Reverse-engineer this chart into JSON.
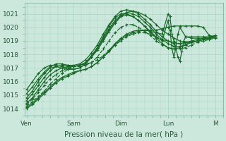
{
  "bg_color": "#cce8dd",
  "grid_color": "#aad4c4",
  "line_color": "#1a6b2a",
  "marker": "P",
  "markersize": 2.0,
  "linewidth": 0.9,
  "xlabel": "Pression niveau de la mer( hPa )",
  "xlabel_fontsize": 7.5,
  "yticks": [
    1014,
    1015,
    1016,
    1017,
    1018,
    1019,
    1020,
    1021
  ],
  "ylim": [
    1013.5,
    1021.8
  ],
  "xtick_labels": [
    "Ven",
    "Sam",
    "Dim",
    "Lun",
    "M"
  ],
  "xtick_positions": [
    0,
    24,
    48,
    72,
    96
  ],
  "xlim": [
    -1,
    100
  ],
  "series": [
    {
      "x": [
        0,
        3,
        6,
        9,
        12,
        15,
        18,
        21,
        24,
        27,
        30,
        33,
        36,
        39,
        42,
        45,
        48,
        51,
        54,
        57,
        60,
        63,
        66,
        69,
        72,
        75,
        78,
        81,
        84,
        87,
        90,
        93,
        96
      ],
      "y": [
        1014.2,
        1014.5,
        1014.9,
        1015.3,
        1015.8,
        1016.2,
        1016.6,
        1016.9,
        1017.1,
        1017.2,
        1017.3,
        1017.4,
        1017.6,
        1017.9,
        1018.3,
        1018.7,
        1019.0,
        1019.3,
        1019.5,
        1019.6,
        1019.6,
        1019.5,
        1019.3,
        1019.1,
        1019.0,
        1018.9,
        1018.8,
        1018.8,
        1018.9,
        1019.0,
        1019.1,
        1019.2,
        1019.3
      ],
      "dashed": true
    },
    {
      "x": [
        0,
        3,
        6,
        9,
        12,
        15,
        18,
        21,
        24,
        27,
        30,
        33,
        36,
        39,
        42,
        45,
        48,
        51,
        54,
        57,
        60,
        63,
        66,
        69,
        72,
        75,
        78,
        81,
        84,
        87,
        90,
        93,
        96
      ],
      "y": [
        1014.4,
        1014.8,
        1015.4,
        1016.0,
        1016.5,
        1016.8,
        1017.0,
        1017.1,
        1017.1,
        1017.2,
        1017.4,
        1017.8,
        1018.3,
        1019.0,
        1019.7,
        1020.3,
        1020.8,
        1021.1,
        1021.2,
        1021.1,
        1020.9,
        1020.6,
        1020.2,
        1019.8,
        1019.5,
        1019.2,
        1019.0,
        1018.9,
        1018.9,
        1019.0,
        1019.1,
        1019.2,
        1019.3
      ],
      "dashed": false
    },
    {
      "x": [
        0,
        3,
        6,
        9,
        12,
        15,
        18,
        21,
        24,
        27,
        30,
        33,
        36,
        39,
        42,
        45,
        48,
        51,
        54,
        57,
        60,
        63,
        66,
        69,
        72,
        75,
        78,
        81,
        84,
        87,
        90,
        93,
        96
      ],
      "y": [
        1014.6,
        1015.1,
        1015.7,
        1016.3,
        1016.8,
        1017.1,
        1017.2,
        1017.2,
        1017.2,
        1017.3,
        1017.6,
        1018.1,
        1018.7,
        1019.5,
        1020.2,
        1020.8,
        1021.2,
        1021.3,
        1021.2,
        1021.0,
        1020.6,
        1020.2,
        1019.7,
        1019.3,
        1019.0,
        1018.8,
        1018.8,
        1018.9,
        1019.0,
        1019.1,
        1019.2,
        1019.3,
        1019.4
      ],
      "dashed": false
    },
    {
      "x": [
        0,
        3,
        6,
        9,
        12,
        15,
        18,
        21,
        24,
        27,
        30,
        33,
        36,
        39,
        42,
        45,
        48,
        51,
        54,
        57,
        60,
        63,
        66,
        69,
        72,
        75,
        78,
        81,
        84,
        87,
        90,
        93,
        96
      ],
      "y": [
        1015.1,
        1015.6,
        1016.2,
        1016.7,
        1017.1,
        1017.3,
        1017.3,
        1017.2,
        1017.1,
        1017.2,
        1017.4,
        1017.9,
        1018.5,
        1019.2,
        1019.9,
        1020.5,
        1020.9,
        1021.1,
        1021.0,
        1020.8,
        1020.4,
        1020.0,
        1019.5,
        1019.1,
        1018.8,
        1018.6,
        1018.6,
        1018.7,
        1018.9,
        1019.0,
        1019.1,
        1019.2,
        1019.3
      ],
      "dashed": false
    },
    {
      "x": [
        0,
        3,
        6,
        9,
        12,
        15,
        18,
        21,
        24,
        27,
        30,
        33,
        36,
        39,
        42,
        45,
        48,
        51,
        54,
        57,
        60,
        63,
        66,
        69,
        72,
        75,
        78,
        81,
        84,
        87,
        90,
        93,
        96
      ],
      "y": [
        1015.4,
        1016.0,
        1016.6,
        1017.0,
        1017.2,
        1017.2,
        1017.1,
        1017.0,
        1016.9,
        1017.0,
        1017.3,
        1017.8,
        1018.4,
        1019.1,
        1019.8,
        1020.4,
        1020.8,
        1020.9,
        1020.8,
        1020.5,
        1020.1,
        1019.6,
        1019.2,
        1018.8,
        1018.5,
        1018.4,
        1018.5,
        1018.7,
        1018.9,
        1019.0,
        1019.1,
        1019.2,
        1019.3
      ],
      "dashed": false
    },
    {
      "x": [
        0,
        3,
        6,
        9,
        12,
        15,
        18,
        21,
        24,
        27,
        30,
        33,
        36,
        39,
        42,
        45,
        48,
        51,
        54,
        57,
        60,
        63,
        66,
        69,
        72,
        75,
        78,
        81,
        84,
        87,
        90,
        93,
        96
      ],
      "y": [
        1014.3,
        1014.7,
        1015.2,
        1015.7,
        1016.2,
        1016.5,
        1016.8,
        1017.0,
        1017.1,
        1017.1,
        1017.2,
        1017.4,
        1017.8,
        1018.4,
        1019.0,
        1019.6,
        1020.0,
        1020.2,
        1020.2,
        1020.0,
        1019.7,
        1019.4,
        1019.0,
        1018.7,
        1018.5,
        1018.4,
        1018.4,
        1018.5,
        1018.7,
        1018.9,
        1019.0,
        1019.1,
        1019.2
      ],
      "dashed": true
    },
    {
      "x": [
        0,
        3,
        6,
        9,
        12,
        15,
        18,
        21,
        24,
        27,
        30,
        33,
        36,
        39,
        42,
        45,
        48,
        51,
        54,
        57,
        60,
        63,
        66,
        69,
        72,
        75,
        78,
        81,
        84,
        87,
        90,
        93,
        96
      ],
      "y": [
        1014.1,
        1014.4,
        1014.8,
        1015.2,
        1015.6,
        1016.0,
        1016.3,
        1016.5,
        1016.7,
        1016.8,
        1016.9,
        1017.1,
        1017.4,
        1017.8,
        1018.2,
        1018.7,
        1019.1,
        1019.4,
        1019.6,
        1019.7,
        1019.8,
        1019.8,
        1019.8,
        1019.9,
        1020.0,
        1020.1,
        1020.1,
        1020.1,
        1020.1,
        1020.1,
        1020.0,
        1019.4,
        1019.3
      ],
      "dashed": false
    },
    {
      "x": [
        0,
        3,
        6,
        9,
        12,
        15,
        18,
        21,
        24,
        27,
        30,
        33,
        36,
        39,
        42,
        45,
        48,
        51,
        54,
        57,
        60,
        63,
        66,
        69,
        72,
        73,
        74,
        75,
        76,
        77,
        78,
        79,
        80,
        81,
        84,
        87,
        90,
        93,
        96
      ],
      "y": [
        1014.0,
        1014.3,
        1014.7,
        1015.1,
        1015.5,
        1015.9,
        1016.2,
        1016.4,
        1016.6,
        1016.8,
        1016.9,
        1017.1,
        1017.4,
        1017.8,
        1018.3,
        1018.8,
        1019.2,
        1019.5,
        1019.7,
        1019.8,
        1019.8,
        1019.7,
        1019.6,
        1019.5,
        1021.0,
        1020.8,
        1019.5,
        1019.0,
        1018.5,
        1017.8,
        1017.5,
        1018.2,
        1019.0,
        1019.3,
        1019.3,
        1019.3,
        1019.3,
        1019.3,
        1019.3
      ],
      "dashed": false
    },
    {
      "x": [
        0,
        3,
        6,
        9,
        12,
        15,
        18,
        21,
        24,
        27,
        30,
        33,
        36,
        39,
        42,
        45,
        48,
        51,
        54,
        57,
        60,
        63,
        66,
        69,
        72,
        73,
        74,
        75,
        76,
        77,
        78,
        81,
        84,
        87,
        90,
        93,
        96
      ],
      "y": [
        1014.8,
        1015.3,
        1016.0,
        1016.6,
        1017.0,
        1017.1,
        1017.0,
        1016.9,
        1016.9,
        1017.0,
        1017.3,
        1017.8,
        1018.5,
        1019.3,
        1020.1,
        1020.7,
        1021.0,
        1021.0,
        1020.8,
        1020.5,
        1020.1,
        1019.7,
        1019.3,
        1019.0,
        1020.5,
        1019.8,
        1018.4,
        1017.8,
        1018.5,
        1019.5,
        1020.0,
        1019.3,
        1019.2,
        1019.2,
        1019.2,
        1019.2,
        1019.2
      ],
      "dashed": false
    }
  ]
}
